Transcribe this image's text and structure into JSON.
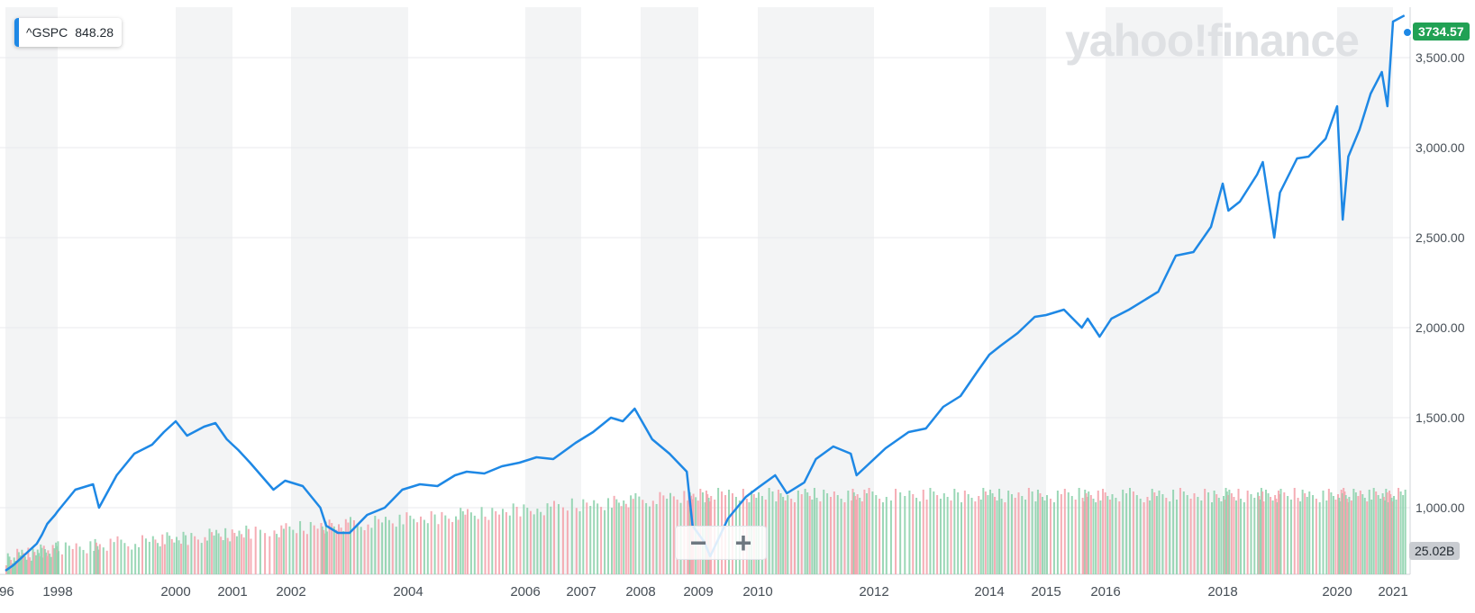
{
  "watermark": "yahoo!finance",
  "legend": {
    "symbol": "^GSPC",
    "value": "848.28"
  },
  "price_tag": "3734.57",
  "volume_tag": "25.02B",
  "zoom": {
    "minus_label": "−",
    "plus_label": "+"
  },
  "colors": {
    "line": "#1e88e5",
    "up_volume": "#8fd3ae",
    "down_volume": "#f4a4ad",
    "band": "#f3f4f5",
    "grid": "#e8eaed",
    "price_tag": "#21a154"
  },
  "chart_data": {
    "type": "line",
    "x_ticks": [
      "'96",
      "1998",
      "2000",
      "2001",
      "2002",
      "2004",
      "2006",
      "2007",
      "2008",
      "2009",
      "2010",
      "2012",
      "2014",
      "2015",
      "2016",
      "2018",
      "2020",
      "2021"
    ],
    "y_ticks": [
      "1,000.00",
      "1,500.00",
      "2,000.00",
      "2,500.00",
      "3,000.00",
      "3,500.00"
    ],
    "ylim": [
      630,
      3780
    ],
    "series": [
      {
        "name": "^GSPC",
        "x": [
          1996.0,
          1996.3,
          1996.6,
          1996.9,
          1997.2,
          1997.4,
          1997.6,
          1997.9,
          1998.0,
          1998.3,
          1998.6,
          1998.7,
          1999.0,
          1999.3,
          1999.6,
          1999.8,
          2000.0,
          2000.2,
          2000.5,
          2000.7,
          2000.9,
          2001.1,
          2001.3,
          2001.7,
          2001.9,
          2002.2,
          2002.5,
          2002.6,
          2002.8,
          2003.0,
          2003.3,
          2003.6,
          2003.9,
          2004.2,
          2004.5,
          2004.8,
          2005.0,
          2005.3,
          2005.6,
          2005.9,
          2006.2,
          2006.5,
          2006.9,
          2007.2,
          2007.5,
          2007.7,
          2007.9,
          2008.2,
          2008.5,
          2008.8,
          2008.9,
          2009.1,
          2009.2,
          2009.5,
          2009.8,
          2010.0,
          2010.3,
          2010.5,
          2010.8,
          2011.0,
          2011.3,
          2011.6,
          2011.7,
          2011.9,
          2012.2,
          2012.6,
          2012.9,
          2013.2,
          2013.5,
          2013.8,
          2014.0,
          2014.2,
          2014.5,
          2014.8,
          2015.0,
          2015.3,
          2015.6,
          2015.7,
          2015.9,
          2016.1,
          2016.4,
          2016.7,
          2016.9,
          2017.2,
          2017.5,
          2017.8,
          2018.0,
          2018.1,
          2018.3,
          2018.6,
          2018.7,
          2018.9,
          2019.0,
          2019.3,
          2019.5,
          2019.8,
          2020.0,
          2020.1,
          2020.2,
          2020.4,
          2020.6,
          2020.8,
          2020.9,
          2021.0,
          2021.2
        ],
        "values": [
          650,
          680,
          720,
          760,
          800,
          850,
          910,
          960,
          980,
          1100,
          1130,
          1000,
          1180,
          1300,
          1350,
          1420,
          1480,
          1400,
          1450,
          1470,
          1380,
          1320,
          1250,
          1100,
          1150,
          1120,
          1000,
          900,
          860,
          860,
          960,
          1000,
          1100,
          1130,
          1120,
          1180,
          1200,
          1190,
          1230,
          1250,
          1280,
          1270,
          1360,
          1420,
          1500,
          1480,
          1550,
          1380,
          1300,
          1200,
          900,
          810,
          730,
          940,
          1060,
          1110,
          1180,
          1080,
          1140,
          1270,
          1340,
          1300,
          1180,
          1240,
          1330,
          1420,
          1440,
          1560,
          1620,
          1760,
          1850,
          1900,
          1970,
          2060,
          2070,
          2100,
          2000,
          2050,
          1950,
          2050,
          2100,
          2160,
          2200,
          2400,
          2420,
          2560,
          2800,
          2650,
          2700,
          2850,
          2920,
          2500,
          2750,
          2940,
          2950,
          3050,
          3230,
          2600,
          2950,
          3100,
          3300,
          3420,
          3230,
          3700,
          3734
        ]
      }
    ]
  }
}
